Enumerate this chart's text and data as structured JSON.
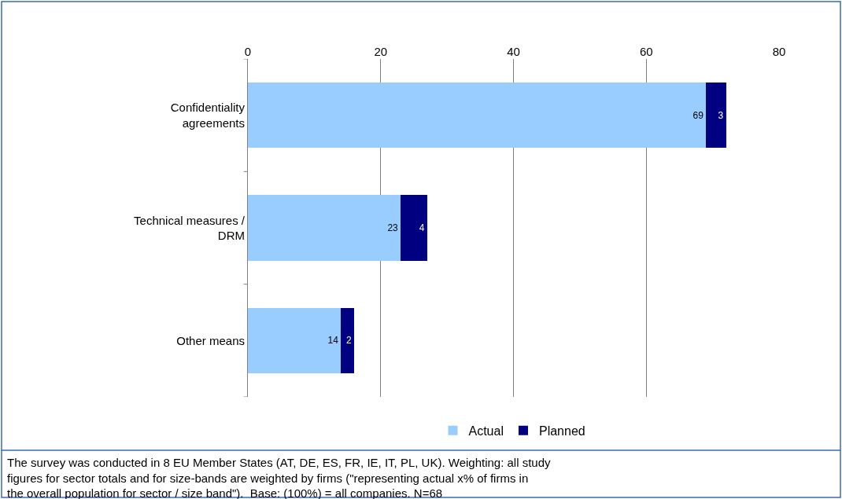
{
  "chart_data": {
    "type": "bar",
    "orientation": "horizontal",
    "stacked": true,
    "categories": [
      "Confidentiality agreements",
      "Technical measures / DRM",
      "Other means"
    ],
    "series": [
      {
        "name": "Actual",
        "color": "#99ccff",
        "values": [
          69,
          23,
          14
        ]
      },
      {
        "name": "Planned",
        "color": "#000080",
        "values": [
          3,
          4,
          2
        ]
      }
    ],
    "xlim": [
      0,
      80
    ],
    "xticks": [
      0,
      20,
      40,
      60,
      80
    ],
    "grid": "x",
    "legend": "bottom",
    "data_labels": true,
    "annotations": [
      "The survey was conducted in 8 EU Member States (AT, DE, ES, FR, IE, IT, PL, UK). Weighting: all study figures for sector totals and for size-bands are weighted by firms (\"representing actual x% of firms in the overall population for sector / size band\").  Base: (100%) = all companies. N=68"
    ]
  }
}
